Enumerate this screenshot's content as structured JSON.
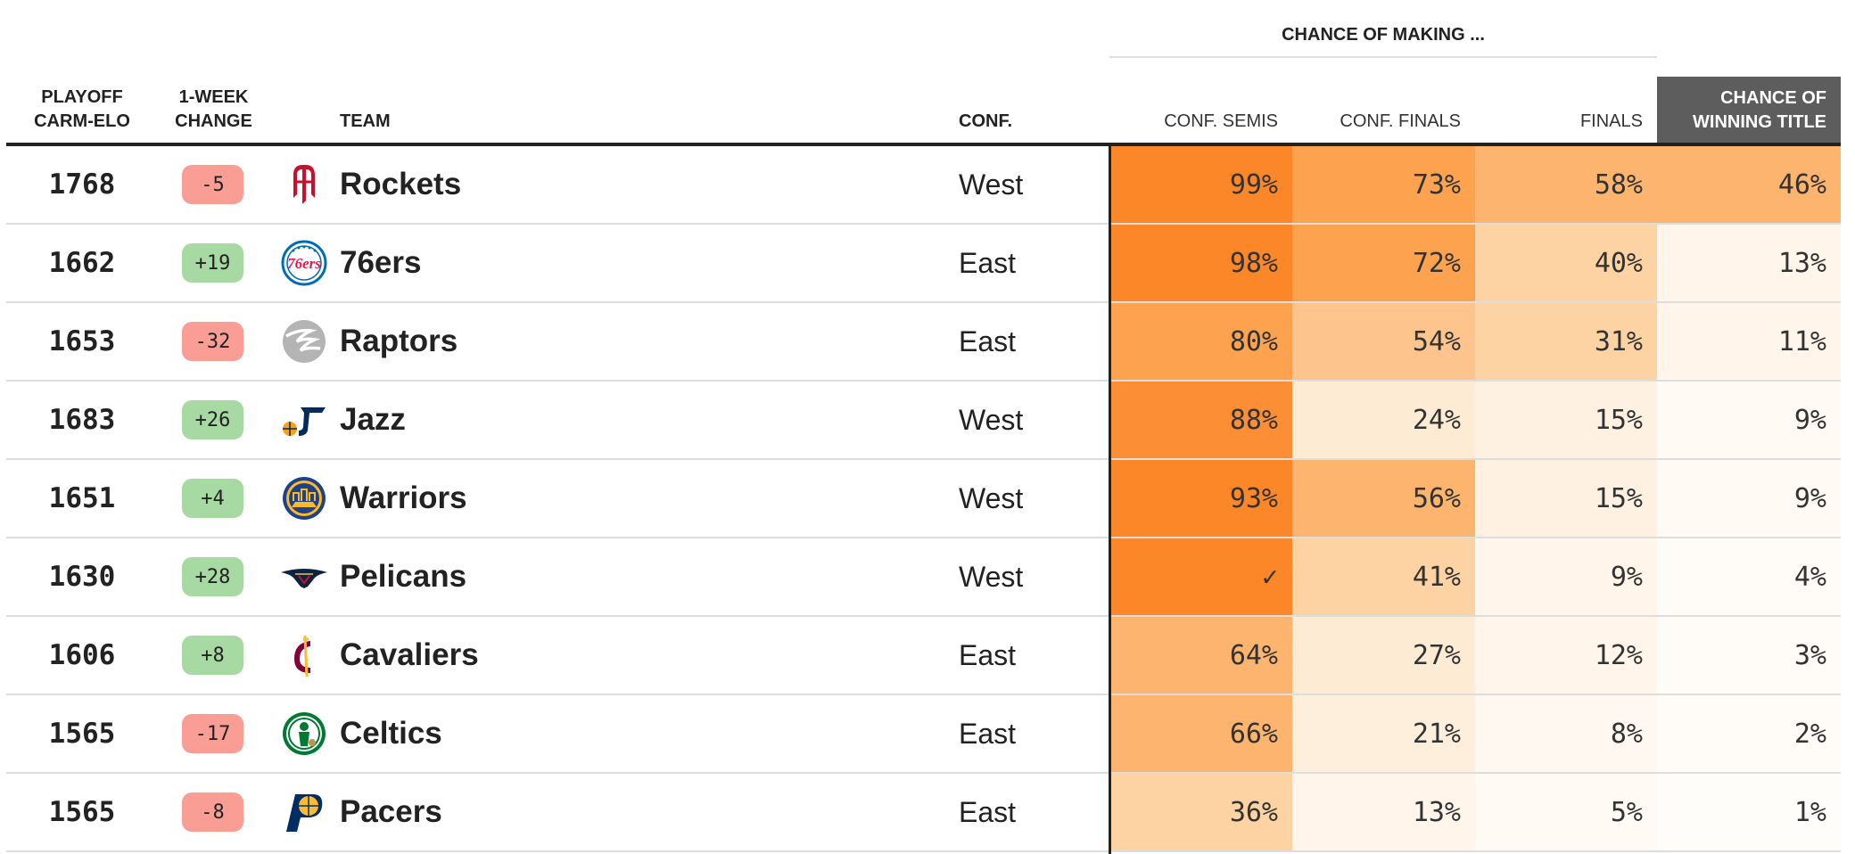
{
  "headers": {
    "elo": [
      "PLAYOFF",
      "CARM-ELO"
    ],
    "change": [
      "1-WEEK",
      "CHANGE"
    ],
    "team": "TEAM",
    "conf": "CONF.",
    "chance_of_making": "CHANCE OF MAKING ...",
    "conf_semis": "CONF. SEMIS",
    "conf_finals": "CONF. FINALS",
    "finals": "FINALS",
    "title": [
      "CHANCE OF",
      "WINNING TITLE"
    ]
  },
  "colors": {
    "orange_1": "#fc8728",
    "orange_2": "#fda34f",
    "orange_3": "#fdb46f",
    "orange_4": "#fdd3a3",
    "orange_5": "#feebd4",
    "orange_6": "#fff5ea",
    "positive": "#a7d9a2",
    "negative": "#f99d95",
    "header_dark": "#5d5d5d"
  },
  "rows": [
    {
      "elo": "1768",
      "change": "-5",
      "change_dir": "neg",
      "logo": "rockets-icon",
      "team": "Rockets",
      "conf": "West",
      "semis": "99%",
      "conf_finals": "73%",
      "finals": "58%",
      "title": "46%",
      "shades": [
        "#fc8728",
        "#fda34f",
        "#fdb46f",
        "#fdb46f"
      ]
    },
    {
      "elo": "1662",
      "change": "+19",
      "change_dir": "pos",
      "logo": "76ers-icon",
      "team": "76ers",
      "conf": "East",
      "semis": "98%",
      "conf_finals": "72%",
      "finals": "40%",
      "title": "13%",
      "shades": [
        "#fc8728",
        "#fda34f",
        "#fdd3a3",
        "#fff5ea"
      ]
    },
    {
      "elo": "1653",
      "change": "-32",
      "change_dir": "neg",
      "logo": "raptors-icon",
      "team": "Raptors",
      "conf": "East",
      "semis": "80%",
      "conf_finals": "54%",
      "finals": "31%",
      "title": "11%",
      "shades": [
        "#fda34f",
        "#fdc48e",
        "#fdd3a3",
        "#fff5ea"
      ]
    },
    {
      "elo": "1683",
      "change": "+26",
      "change_dir": "pos",
      "logo": "jazz-icon",
      "team": "Jazz",
      "conf": "West",
      "semis": "88%",
      "conf_finals": "24%",
      "finals": "15%",
      "title": "9%",
      "shades": [
        "#fc8f35",
        "#feebd4",
        "#fff1e2",
        "#fffaf4"
      ]
    },
    {
      "elo": "1651",
      "change": "+4",
      "change_dir": "pos",
      "logo": "warriors-icon",
      "team": "Warriors",
      "conf": "West",
      "semis": "93%",
      "conf_finals": "56%",
      "finals": "15%",
      "title": "9%",
      "shades": [
        "#fc8728",
        "#fdb46f",
        "#fff1e2",
        "#fffaf4"
      ]
    },
    {
      "elo": "1630",
      "change": "+28",
      "change_dir": "pos",
      "logo": "pelicans-icon",
      "team": "Pelicans",
      "conf": "West",
      "semis": "✓",
      "conf_finals": "41%",
      "finals": "9%",
      "title": "4%",
      "shades": [
        "#fc8728",
        "#fdd3a3",
        "#fff5ea",
        "#fffbf6"
      ]
    },
    {
      "elo": "1606",
      "change": "+8",
      "change_dir": "pos",
      "logo": "cavaliers-icon",
      "team": "Cavaliers",
      "conf": "East",
      "semis": "64%",
      "conf_finals": "27%",
      "finals": "12%",
      "title": "3%",
      "shades": [
        "#fdb46f",
        "#feebd4",
        "#fff5ea",
        "#fffbf6"
      ]
    },
    {
      "elo": "1565",
      "change": "-17",
      "change_dir": "neg",
      "logo": "celtics-icon",
      "team": "Celtics",
      "conf": "East",
      "semis": "66%",
      "conf_finals": "21%",
      "finals": "8%",
      "title": "2%",
      "shades": [
        "#fdb46f",
        "#feefdc",
        "#fff8f0",
        "#fffcf8"
      ]
    },
    {
      "elo": "1565",
      "change": "-8",
      "change_dir": "neg",
      "logo": "pacers-icon",
      "team": "Pacers",
      "conf": "East",
      "semis": "36%",
      "conf_finals": "13%",
      "finals": "5%",
      "title": "1%",
      "shades": [
        "#fdd3a3",
        "#fff5ea",
        "#fffaf4",
        "#fffdfa"
      ]
    }
  ]
}
